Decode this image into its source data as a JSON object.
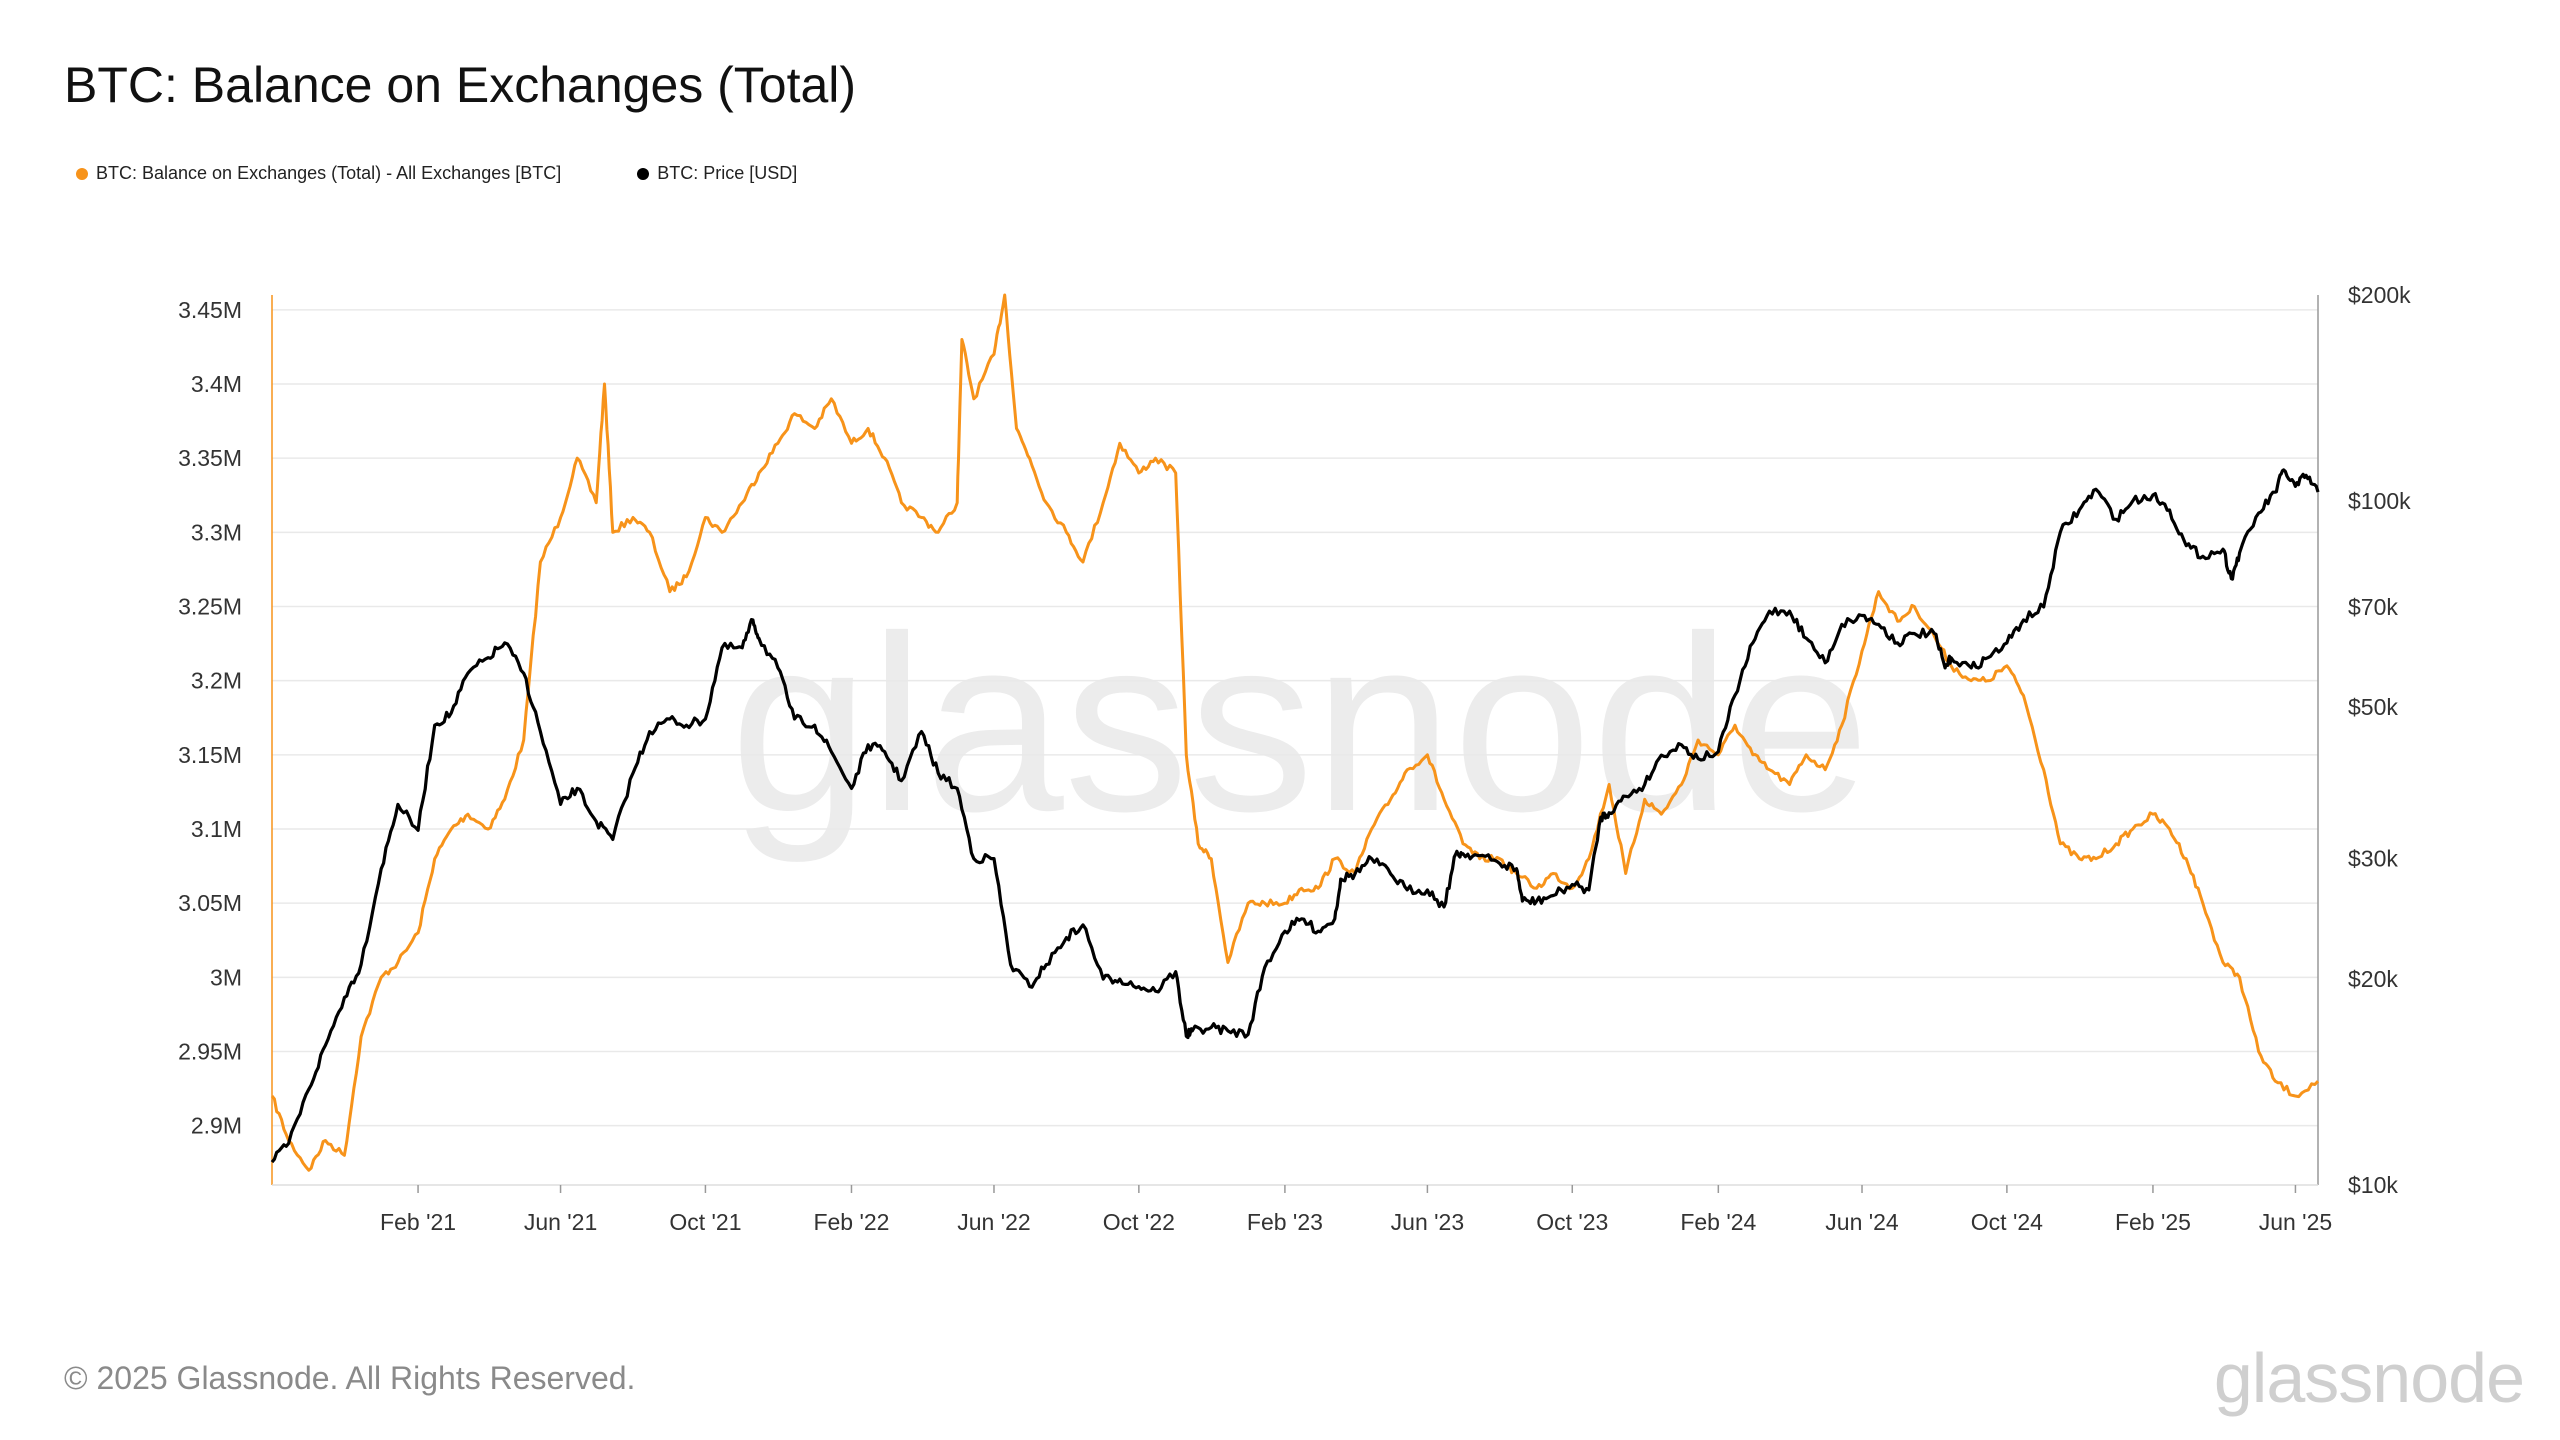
{
  "title": "BTC: Balance on Exchanges (Total)",
  "legend": [
    {
      "label": "BTC: Balance on Exchanges (Total) - All Exchanges [BTC]",
      "color": "#F7931A"
    },
    {
      "label": "BTC: Price [USD]",
      "color": "#000000"
    }
  ],
  "watermark": "glassnode",
  "footer": "© 2025 Glassnode. All Rights Reserved.",
  "brand": "glassnode",
  "chart_data": {
    "type": "line",
    "title": "BTC: Balance on Exchanges (Total)",
    "x_ticks": [
      "Feb '21",
      "Jun '21",
      "Oct '21",
      "Feb '22",
      "Jun '22",
      "Oct '22",
      "Feb '23",
      "Jun '23",
      "Oct '23",
      "Feb '24",
      "Jun '24",
      "Oct '24",
      "Feb '25",
      "Jun '25"
    ],
    "x_tick_dates": [
      "2021-02-01",
      "2021-06-01",
      "2021-10-01",
      "2022-02-01",
      "2022-06-01",
      "2022-10-01",
      "2023-02-01",
      "2023-06-01",
      "2023-10-01",
      "2024-02-01",
      "2024-06-01",
      "2024-10-01",
      "2025-02-01",
      "2025-06-01"
    ],
    "x_range": [
      "2020-10-01",
      "2025-06-20"
    ],
    "y_left": {
      "ticks": [
        "2.9M",
        "2.95M",
        "3M",
        "3.05M",
        "3.1M",
        "3.15M",
        "3.2M",
        "3.25M",
        "3.3M",
        "3.35M",
        "3.4M",
        "3.45M"
      ],
      "tick_values": [
        2.9,
        2.95,
        3.0,
        3.05,
        3.1,
        3.15,
        3.2,
        3.25,
        3.3,
        3.35,
        3.4,
        3.45
      ],
      "range": [
        2.86,
        3.46
      ],
      "unit": "M BTC"
    },
    "y_right": {
      "ticks": [
        "$10k",
        "$20k",
        "$30k",
        "$50k",
        "$70k",
        "$100k",
        "$200k"
      ],
      "tick_values": [
        10000,
        20000,
        30000,
        50000,
        70000,
        100000,
        200000
      ],
      "range": [
        10000,
        200000
      ],
      "scale": "log"
    },
    "grid": "horizontal",
    "series": [
      {
        "name": "BTC: Balance on Exchanges (Total) - All Exchanges [BTC]",
        "color": "#F7931A",
        "axis": "left",
        "points": [
          [
            "2020-10-01",
            2.92
          ],
          [
            "2020-10-15",
            2.89
          ],
          [
            "2020-11-01",
            2.87
          ],
          [
            "2020-11-15",
            2.89
          ],
          [
            "2020-12-01",
            2.88
          ],
          [
            "2020-12-15",
            2.96
          ],
          [
            "2021-01-01",
            3.0
          ],
          [
            "2021-01-15",
            3.01
          ],
          [
            "2021-02-01",
            3.03
          ],
          [
            "2021-02-15",
            3.08
          ],
          [
            "2021-03-01",
            3.1
          ],
          [
            "2021-03-15",
            3.11
          ],
          [
            "2021-04-01",
            3.1
          ],
          [
            "2021-04-15",
            3.12
          ],
          [
            "2021-05-01",
            3.16
          ],
          [
            "2021-05-15",
            3.28
          ],
          [
            "2021-06-01",
            3.31
          ],
          [
            "2021-06-15",
            3.35
          ],
          [
            "2021-07-01",
            3.32
          ],
          [
            "2021-07-08",
            3.4
          ],
          [
            "2021-07-15",
            3.3
          ],
          [
            "2021-08-01",
            3.31
          ],
          [
            "2021-08-15",
            3.3
          ],
          [
            "2021-09-01",
            3.26
          ],
          [
            "2021-09-15",
            3.27
          ],
          [
            "2021-10-01",
            3.31
          ],
          [
            "2021-10-15",
            3.3
          ],
          [
            "2021-11-01",
            3.32
          ],
          [
            "2021-11-15",
            3.34
          ],
          [
            "2021-12-01",
            3.36
          ],
          [
            "2021-12-15",
            3.38
          ],
          [
            "2022-01-01",
            3.37
          ],
          [
            "2022-01-15",
            3.39
          ],
          [
            "2022-02-01",
            3.36
          ],
          [
            "2022-02-15",
            3.37
          ],
          [
            "2022-03-01",
            3.35
          ],
          [
            "2022-03-15",
            3.32
          ],
          [
            "2022-04-01",
            3.31
          ],
          [
            "2022-04-15",
            3.3
          ],
          [
            "2022-05-01",
            3.32
          ],
          [
            "2022-05-05",
            3.43
          ],
          [
            "2022-05-15",
            3.39
          ],
          [
            "2022-06-01",
            3.42
          ],
          [
            "2022-06-10",
            3.46
          ],
          [
            "2022-06-20",
            3.37
          ],
          [
            "2022-07-01",
            3.35
          ],
          [
            "2022-07-15",
            3.32
          ],
          [
            "2022-08-01",
            3.3
          ],
          [
            "2022-08-15",
            3.28
          ],
          [
            "2022-09-01",
            3.32
          ],
          [
            "2022-09-15",
            3.36
          ],
          [
            "2022-10-01",
            3.34
          ],
          [
            "2022-10-15",
            3.35
          ],
          [
            "2022-11-01",
            3.34
          ],
          [
            "2022-11-10",
            3.15
          ],
          [
            "2022-11-20",
            3.09
          ],
          [
            "2022-12-01",
            3.08
          ],
          [
            "2022-12-15",
            3.01
          ],
          [
            "2023-01-01",
            3.05
          ],
          [
            "2023-01-15",
            3.05
          ],
          [
            "2023-02-01",
            3.05
          ],
          [
            "2023-02-15",
            3.06
          ],
          [
            "2023-03-01",
            3.06
          ],
          [
            "2023-03-15",
            3.08
          ],
          [
            "2023-04-01",
            3.07
          ],
          [
            "2023-04-15",
            3.1
          ],
          [
            "2023-05-01",
            3.12
          ],
          [
            "2023-05-15",
            3.14
          ],
          [
            "2023-06-01",
            3.15
          ],
          [
            "2023-06-15",
            3.12
          ],
          [
            "2023-07-01",
            3.09
          ],
          [
            "2023-07-15",
            3.08
          ],
          [
            "2023-08-01",
            3.08
          ],
          [
            "2023-08-15",
            3.07
          ],
          [
            "2023-09-01",
            3.06
          ],
          [
            "2023-09-15",
            3.07
          ],
          [
            "2023-10-01",
            3.06
          ],
          [
            "2023-10-15",
            3.08
          ],
          [
            "2023-11-01",
            3.13
          ],
          [
            "2023-11-15",
            3.07
          ],
          [
            "2023-12-01",
            3.12
          ],
          [
            "2023-12-15",
            3.11
          ],
          [
            "2024-01-01",
            3.13
          ],
          [
            "2024-01-15",
            3.16
          ],
          [
            "2024-02-01",
            3.15
          ],
          [
            "2024-02-15",
            3.17
          ],
          [
            "2024-03-01",
            3.15
          ],
          [
            "2024-03-15",
            3.14
          ],
          [
            "2024-04-01",
            3.13
          ],
          [
            "2024-04-15",
            3.15
          ],
          [
            "2024-05-01",
            3.14
          ],
          [
            "2024-05-15",
            3.17
          ],
          [
            "2024-06-01",
            3.22
          ],
          [
            "2024-06-15",
            3.26
          ],
          [
            "2024-07-01",
            3.24
          ],
          [
            "2024-07-15",
            3.25
          ],
          [
            "2024-08-01",
            3.23
          ],
          [
            "2024-08-15",
            3.21
          ],
          [
            "2024-09-01",
            3.2
          ],
          [
            "2024-09-15",
            3.2
          ],
          [
            "2024-10-01",
            3.21
          ],
          [
            "2024-10-15",
            3.19
          ],
          [
            "2024-11-01",
            3.14
          ],
          [
            "2024-11-15",
            3.09
          ],
          [
            "2024-12-01",
            3.08
          ],
          [
            "2024-12-15",
            3.08
          ],
          [
            "2025-01-01",
            3.09
          ],
          [
            "2025-01-15",
            3.1
          ],
          [
            "2025-02-01",
            3.11
          ],
          [
            "2025-02-15",
            3.1
          ],
          [
            "2025-03-01",
            3.08
          ],
          [
            "2025-03-15",
            3.05
          ],
          [
            "2025-04-01",
            3.01
          ],
          [
            "2025-04-15",
            3.0
          ],
          [
            "2025-05-01",
            2.95
          ],
          [
            "2025-05-15",
            2.93
          ],
          [
            "2025-06-01",
            2.92
          ],
          [
            "2025-06-20",
            2.93
          ]
        ]
      },
      {
        "name": "BTC: Price [USD]",
        "color": "#000000",
        "axis": "right",
        "points": [
          [
            "2020-10-01",
            10800
          ],
          [
            "2020-10-15",
            11500
          ],
          [
            "2020-11-01",
            13800
          ],
          [
            "2020-11-15",
            16000
          ],
          [
            "2020-12-01",
            18800
          ],
          [
            "2020-12-15",
            21000
          ],
          [
            "2021-01-01",
            29000
          ],
          [
            "2021-01-15",
            36000
          ],
          [
            "2021-02-01",
            33000
          ],
          [
            "2021-02-15",
            47000
          ],
          [
            "2021-03-01",
            49000
          ],
          [
            "2021-03-15",
            56000
          ],
          [
            "2021-04-01",
            59000
          ],
          [
            "2021-04-15",
            62000
          ],
          [
            "2021-05-01",
            56000
          ],
          [
            "2021-05-15",
            46000
          ],
          [
            "2021-06-01",
            36000
          ],
          [
            "2021-06-15",
            38000
          ],
          [
            "2021-07-01",
            34000
          ],
          [
            "2021-07-15",
            32000
          ],
          [
            "2021-08-01",
            40000
          ],
          [
            "2021-08-15",
            46000
          ],
          [
            "2021-09-01",
            48000
          ],
          [
            "2021-09-15",
            47000
          ],
          [
            "2021-10-01",
            48000
          ],
          [
            "2021-10-15",
            61000
          ],
          [
            "2021-11-01",
            61000
          ],
          [
            "2021-11-10",
            67000
          ],
          [
            "2021-11-15",
            63000
          ],
          [
            "2021-12-01",
            57000
          ],
          [
            "2021-12-15",
            48000
          ],
          [
            "2022-01-01",
            47000
          ],
          [
            "2022-01-15",
            43000
          ],
          [
            "2022-02-01",
            38000
          ],
          [
            "2022-02-15",
            44000
          ],
          [
            "2022-03-01",
            43000
          ],
          [
            "2022-03-15",
            39000
          ],
          [
            "2022-04-01",
            46000
          ],
          [
            "2022-04-15",
            40000
          ],
          [
            "2022-05-01",
            38000
          ],
          [
            "2022-05-15",
            30000
          ],
          [
            "2022-06-01",
            30000
          ],
          [
            "2022-06-15",
            21000
          ],
          [
            "2022-07-01",
            19500
          ],
          [
            "2022-07-15",
            21000
          ],
          [
            "2022-08-01",
            23000
          ],
          [
            "2022-08-15",
            24000
          ],
          [
            "2022-09-01",
            20000
          ],
          [
            "2022-09-15",
            20000
          ],
          [
            "2022-10-01",
            19500
          ],
          [
            "2022-10-15",
            19200
          ],
          [
            "2022-11-01",
            20500
          ],
          [
            "2022-11-10",
            16500
          ],
          [
            "2022-11-15",
            16800
          ],
          [
            "2022-12-01",
            17000
          ],
          [
            "2022-12-15",
            16800
          ],
          [
            "2023-01-01",
            16600
          ],
          [
            "2023-01-15",
            20800
          ],
          [
            "2023-02-01",
            23500
          ],
          [
            "2023-02-15",
            24500
          ],
          [
            "2023-03-01",
            23500
          ],
          [
            "2023-03-15",
            24500
          ],
          [
            "2023-03-20",
            28000
          ],
          [
            "2023-04-01",
            28500
          ],
          [
            "2023-04-15",
            30000
          ],
          [
            "2023-05-01",
            28500
          ],
          [
            "2023-05-15",
            27000
          ],
          [
            "2023-06-01",
            27000
          ],
          [
            "2023-06-15",
            25500
          ],
          [
            "2023-06-25",
            30500
          ],
          [
            "2023-07-01",
            30500
          ],
          [
            "2023-07-15",
            30300
          ],
          [
            "2023-08-01",
            29500
          ],
          [
            "2023-08-15",
            29000
          ],
          [
            "2023-08-20",
            26000
          ],
          [
            "2023-09-01",
            26000
          ],
          [
            "2023-09-15",
            26500
          ],
          [
            "2023-10-01",
            27500
          ],
          [
            "2023-10-15",
            27000
          ],
          [
            "2023-10-25",
            34500
          ],
          [
            "2023-11-01",
            35000
          ],
          [
            "2023-11-15",
            37000
          ],
          [
            "2023-12-01",
            38500
          ],
          [
            "2023-12-15",
            42500
          ],
          [
            "2024-01-01",
            44000
          ],
          [
            "2024-01-15",
            42000
          ],
          [
            "2024-02-01",
            43000
          ],
          [
            "2024-02-15",
            52000
          ],
          [
            "2024-03-01",
            62000
          ],
          [
            "2024-03-15",
            69000
          ],
          [
            "2024-04-01",
            69000
          ],
          [
            "2024-04-15",
            63000
          ],
          [
            "2024-05-01",
            58000
          ],
          [
            "2024-05-15",
            66000
          ],
          [
            "2024-06-01",
            68000
          ],
          [
            "2024-06-15",
            66000
          ],
          [
            "2024-07-01",
            62000
          ],
          [
            "2024-07-15",
            64000
          ],
          [
            "2024-08-01",
            64000
          ],
          [
            "2024-08-10",
            57000
          ],
          [
            "2024-08-15",
            59000
          ],
          [
            "2024-09-01",
            57000
          ],
          [
            "2024-09-15",
            59000
          ],
          [
            "2024-10-01",
            62000
          ],
          [
            "2024-10-15",
            67000
          ],
          [
            "2024-11-01",
            70000
          ],
          [
            "2024-11-15",
            90000
          ],
          [
            "2024-12-01",
            97000
          ],
          [
            "2024-12-15",
            104000
          ],
          [
            "2025-01-01",
            94000
          ],
          [
            "2025-01-15",
            100000
          ],
          [
            "2025-02-01",
            102000
          ],
          [
            "2025-02-15",
            97000
          ],
          [
            "2025-03-01",
            86000
          ],
          [
            "2025-03-15",
            83000
          ],
          [
            "2025-04-01",
            85000
          ],
          [
            "2025-04-08",
            77000
          ],
          [
            "2025-04-15",
            84000
          ],
          [
            "2025-05-01",
            96000
          ],
          [
            "2025-05-15",
            103000
          ],
          [
            "2025-05-22",
            111000
          ],
          [
            "2025-06-01",
            105000
          ],
          [
            "2025-06-10",
            109000
          ],
          [
            "2025-06-20",
            103000
          ]
        ]
      }
    ]
  }
}
